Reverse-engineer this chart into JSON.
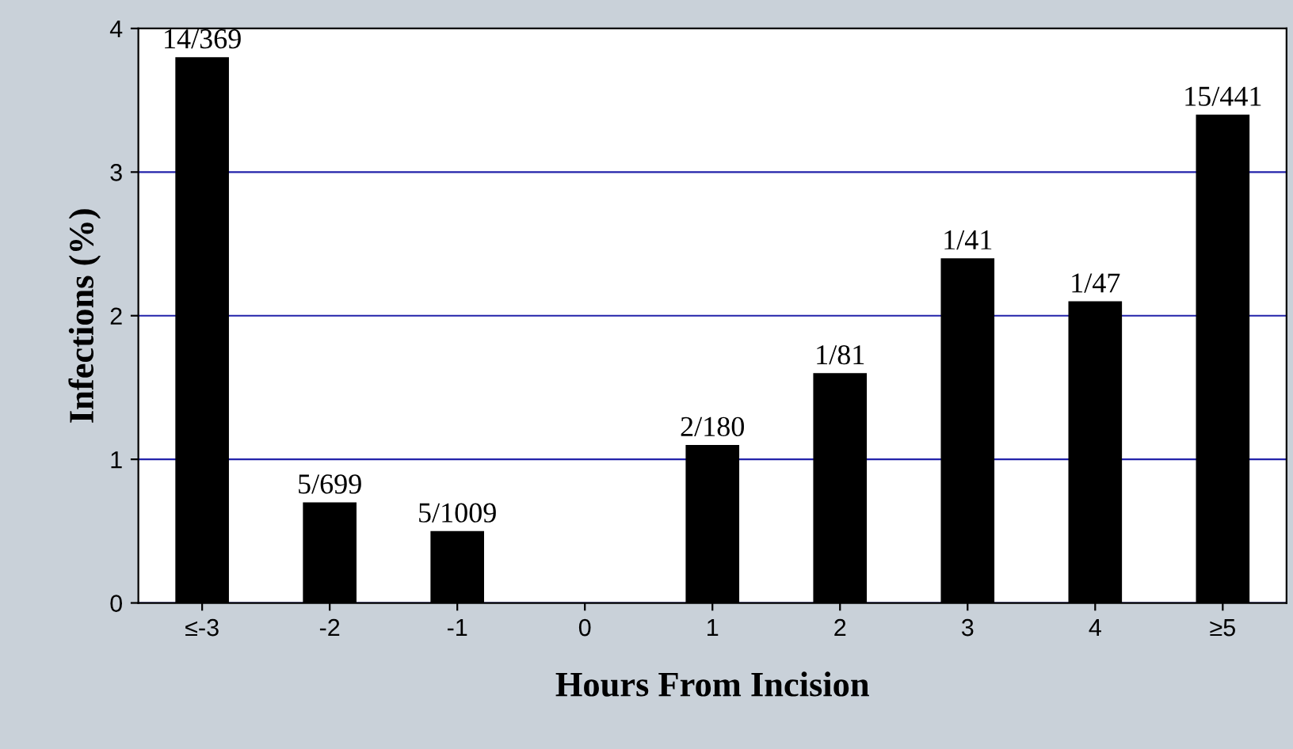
{
  "chart_data": {
    "type": "bar",
    "xlabel": "Hours From Incision",
    "ylabel": "Infections (%)",
    "categories": [
      "≤-3",
      "-2",
      "-1",
      "0",
      "1",
      "2",
      "3",
      "4",
      "≥5"
    ],
    "values": [
      3.8,
      0.7,
      0.5,
      0,
      1.1,
      1.6,
      2.4,
      2.1,
      3.4
    ],
    "value_labels": [
      "14/369",
      "5/699",
      "5/1009",
      null,
      "2/180",
      "1/81",
      "1/41",
      "1/47",
      "15/441"
    ],
    "color": "#000000",
    "ylim": [
      0,
      4
    ],
    "yticks": [
      0,
      1,
      2,
      3,
      4
    ],
    "grid": "y"
  }
}
